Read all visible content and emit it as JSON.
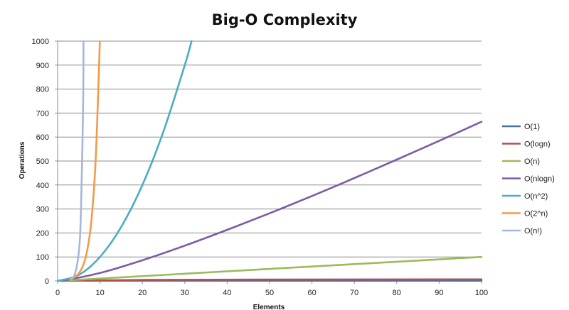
{
  "chart_data": {
    "type": "line",
    "title": "Big-O Complexity",
    "xlabel": "Elements",
    "ylabel": "Operations",
    "xlim": [
      0,
      100
    ],
    "ylim": [
      0,
      1000
    ],
    "x_ticks": [
      0,
      10,
      20,
      30,
      40,
      50,
      60,
      70,
      80,
      90,
      100
    ],
    "y_ticks": [
      0,
      100,
      200,
      300,
      400,
      500,
      600,
      700,
      800,
      900,
      1000
    ],
    "grid": "horizontal",
    "legend_position": "right",
    "series": [
      {
        "name": "O(1)",
        "color": "#4a6fa5",
        "points": [
          [
            0,
            1
          ],
          [
            100,
            1
          ]
        ]
      },
      {
        "name": "O(logn)",
        "color": "#b5504c",
        "points": [
          [
            1,
            0
          ],
          [
            20,
            4.3
          ],
          [
            50,
            5.6
          ],
          [
            100,
            6.6
          ]
        ]
      },
      {
        "name": "O(n)",
        "color": "#9bbb59",
        "points": [
          [
            0,
            0
          ],
          [
            50,
            50
          ],
          [
            100,
            100
          ]
        ]
      },
      {
        "name": "O(nlogn)",
        "color": "#7e5ca3",
        "points": [
          [
            1,
            0
          ],
          [
            10,
            33
          ],
          [
            20,
            86
          ],
          [
            30,
            147
          ],
          [
            40,
            213
          ],
          [
            50,
            282
          ],
          [
            60,
            354
          ],
          [
            70,
            429
          ],
          [
            80,
            506
          ],
          [
            90,
            584
          ],
          [
            100,
            664
          ]
        ]
      },
      {
        "name": "O(n^2)",
        "color": "#4bacc6",
        "points": [
          [
            0,
            0
          ],
          [
            5,
            25
          ],
          [
            10,
            100
          ],
          [
            15,
            225
          ],
          [
            20,
            400
          ],
          [
            25,
            625
          ],
          [
            30,
            900
          ],
          [
            31.6,
            1000
          ]
        ]
      },
      {
        "name": "O(2^n)",
        "color": "#f39a4a",
        "points": [
          [
            3,
            8
          ],
          [
            4,
            16
          ],
          [
            5,
            32
          ],
          [
            6,
            64
          ],
          [
            7,
            128
          ],
          [
            8,
            256
          ],
          [
            9,
            512
          ],
          [
            9.97,
            1000
          ]
        ]
      },
      {
        "name": "O(n!)",
        "color": "#a5b7dd",
        "points": [
          [
            3,
            6
          ],
          [
            4,
            24
          ],
          [
            5,
            120
          ],
          [
            5.5,
            287
          ],
          [
            6,
            720
          ],
          [
            6.1,
            1000
          ]
        ]
      }
    ]
  }
}
